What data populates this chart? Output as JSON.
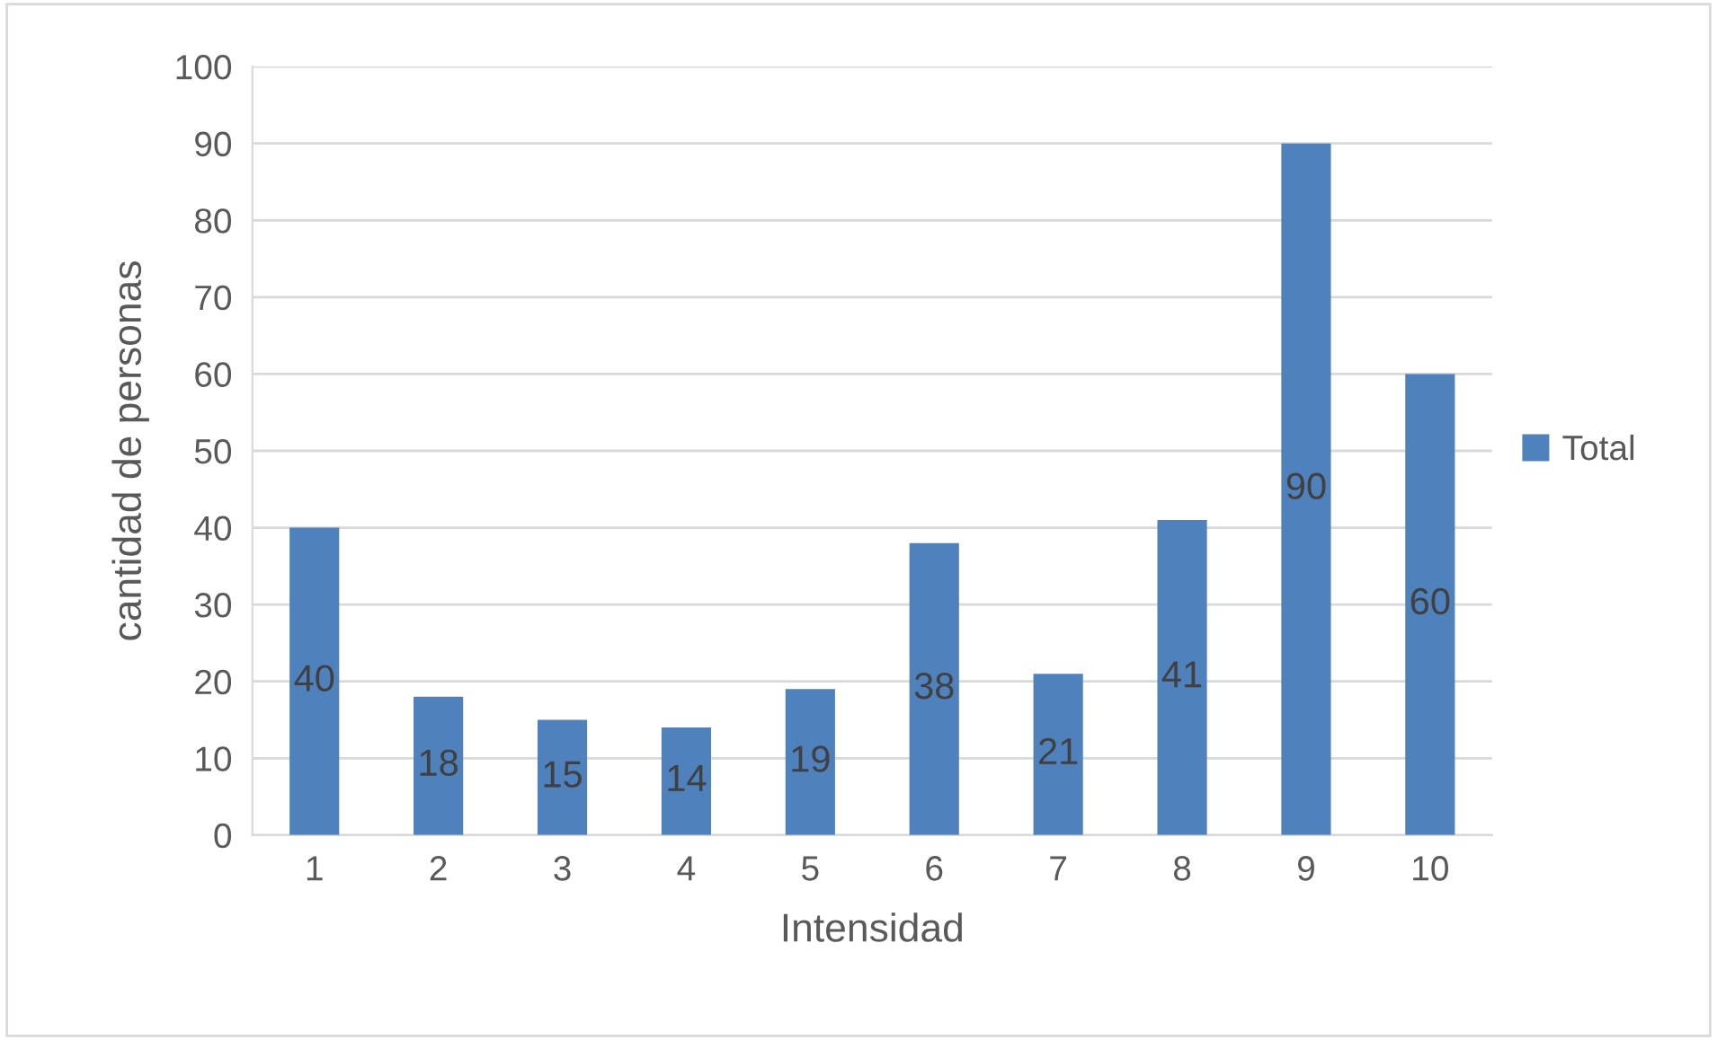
{
  "chart_data": {
    "type": "bar",
    "xlabel": "Intensidad",
    "ylabel": "cantidad de personas",
    "categories": [
      "1",
      "2",
      "3",
      "4",
      "5",
      "6",
      "7",
      "8",
      "9",
      "10"
    ],
    "series": [
      {
        "name": "Total",
        "color": "#4f81bd",
        "values": [
          40,
          18,
          15,
          14,
          19,
          38,
          21,
          41,
          90,
          60
        ]
      }
    ],
    "ylim": [
      0,
      100
    ],
    "yticks": [
      0,
      10,
      20,
      30,
      40,
      50,
      60,
      70,
      80,
      90,
      100
    ],
    "grid": "y",
    "legend": "right",
    "data_labels": true
  }
}
